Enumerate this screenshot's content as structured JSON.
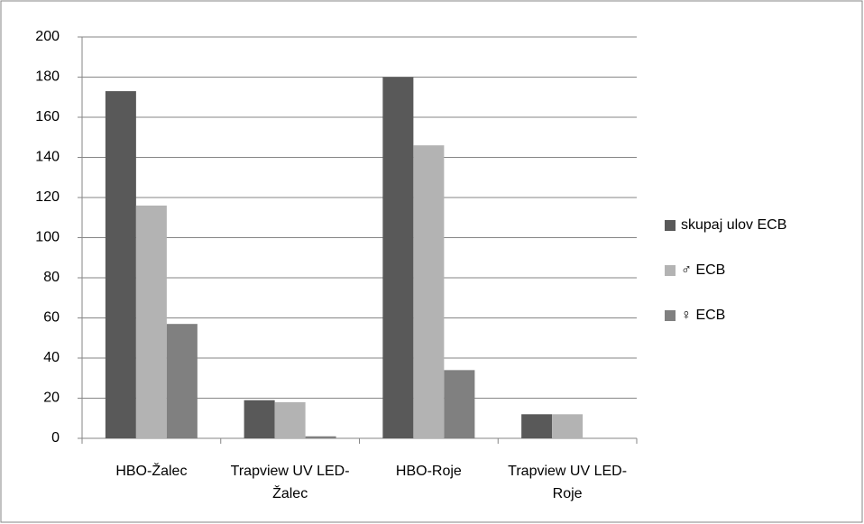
{
  "chart_data": {
    "type": "bar",
    "categories": [
      "HBO-Žalec",
      "Trapview UV LED-Žalec",
      "HBO-Roje",
      "Trapview UV LED-Roje"
    ],
    "series": [
      {
        "name": "skupaj ulov ECB",
        "color": "#595959",
        "values": [
          173,
          19,
          180,
          12
        ]
      },
      {
        "name": "♂ ECB",
        "color": "#b3b3b3",
        "values": [
          116,
          18,
          146,
          12
        ]
      },
      {
        "name": "♀ ECB",
        "color": "#808080",
        "values": [
          57,
          1,
          34,
          0
        ]
      }
    ],
    "ylim": [
      0,
      200
    ],
    "yticks": [
      0,
      20,
      40,
      60,
      80,
      100,
      120,
      140,
      160,
      180,
      200
    ],
    "grid": true,
    "legend": "right"
  }
}
